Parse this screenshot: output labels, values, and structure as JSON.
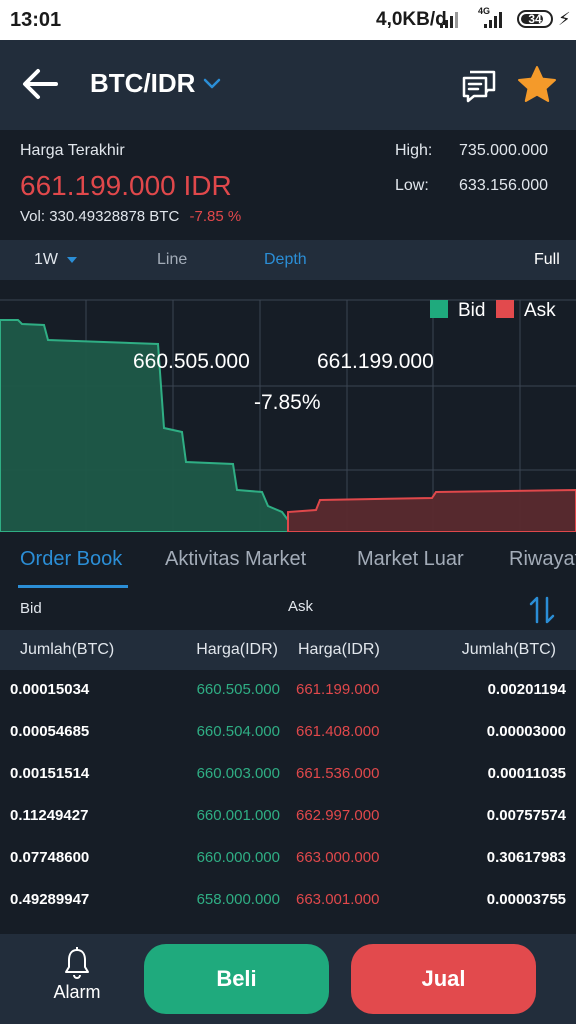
{
  "status_bar": {
    "time": "13:01",
    "network_speed": "4,0KB/d",
    "network_type": "4G",
    "battery": "34"
  },
  "header": {
    "title": "BTC/IDR"
  },
  "info": {
    "last_price_label": "Harga Terakhir",
    "last_price": "661.199.000 IDR",
    "vol_label": "Vol:",
    "vol_value": "330.49328878 BTC",
    "change": "-7.85 %",
    "high_label": "High:",
    "high_value": "735.000.000",
    "low_label": "Low:",
    "low_value": "633.156.000"
  },
  "chart_controls": {
    "interval": "1W",
    "line": "Line",
    "depth": "Depth",
    "full": "Full"
  },
  "depth_chart": {
    "legend_bid": "Bid",
    "legend_ask": "Ask",
    "bid_price": "660.505.000",
    "ask_price": "661.199.000",
    "spread": "-7.85%",
    "bid_color": "#1faa7d",
    "ask_color": "#e24a4d"
  },
  "tabs": [
    "Order Book",
    "Aktivitas Market",
    "Market Luar",
    "Riwayat"
  ],
  "bidask": {
    "bid": "Bid",
    "ask": "Ask"
  },
  "table": {
    "headers": [
      "Jumlah(BTC)",
      "Harga(IDR)",
      "Harga(IDR)",
      "Jumlah(BTC)"
    ],
    "rows": [
      {
        "bid_amount": "0.00015034",
        "bid_price": "660.505.000",
        "ask_price": "661.199.000",
        "ask_amount": "0.00201194"
      },
      {
        "bid_amount": "0.00054685",
        "bid_price": "660.504.000",
        "ask_price": "661.408.000",
        "ask_amount": "0.00003000"
      },
      {
        "bid_amount": "0.00151514",
        "bid_price": "660.003.000",
        "ask_price": "661.536.000",
        "ask_amount": "0.00011035"
      },
      {
        "bid_amount": "0.11249427",
        "bid_price": "660.001.000",
        "ask_price": "662.997.000",
        "ask_amount": "0.00757574"
      },
      {
        "bid_amount": "0.07748600",
        "bid_price": "660.000.000",
        "ask_price": "663.000.000",
        "ask_amount": "0.30617983"
      },
      {
        "bid_amount": "0.49289947",
        "bid_price": "658.000.000",
        "ask_price": "663.001.000",
        "ask_amount": "0.00003755"
      }
    ]
  },
  "bottom_bar": {
    "alarm": "Alarm",
    "buy": "Beli",
    "sell": "Jual"
  }
}
